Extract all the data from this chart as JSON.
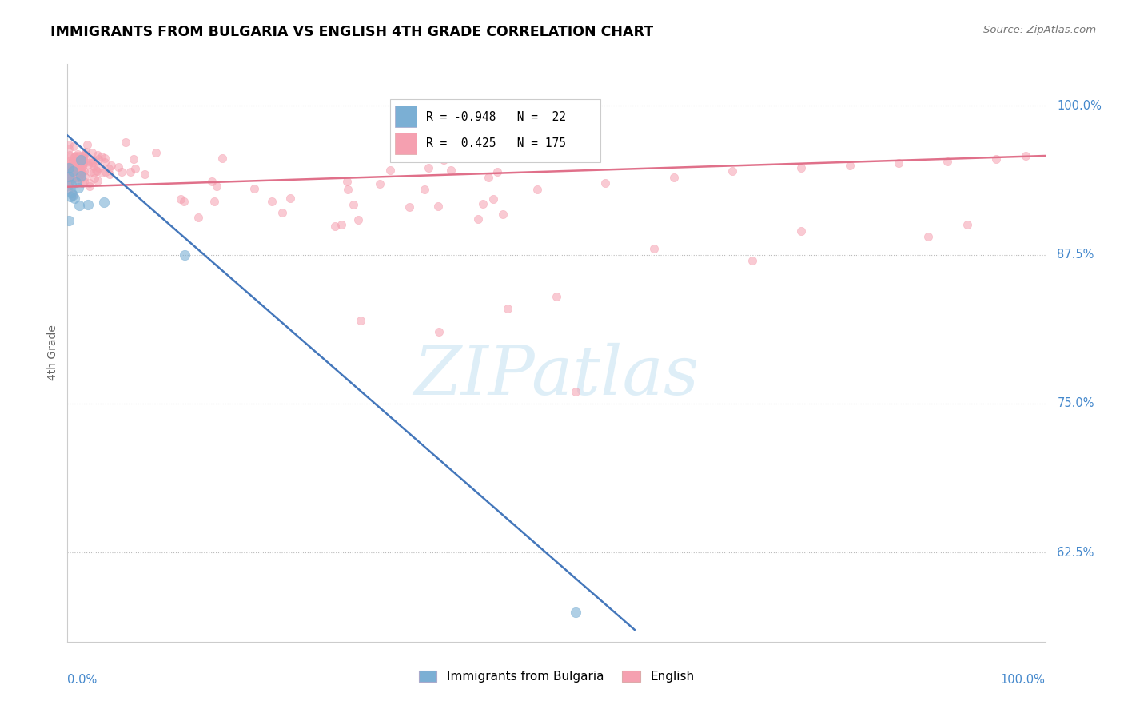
{
  "title": "IMMIGRANTS FROM BULGARIA VS ENGLISH 4TH GRADE CORRELATION CHART",
  "source": "Source: ZipAtlas.com",
  "ylabel": "4th Grade",
  "ytick_labels": [
    "62.5%",
    "75.0%",
    "87.5%",
    "100.0%"
  ],
  "ytick_values": [
    0.625,
    0.75,
    0.875,
    1.0
  ],
  "legend_label1": "Immigrants from Bulgaria",
  "legend_label2": "English",
  "r1": -0.948,
  "n1": 22,
  "r2": 0.425,
  "n2": 175,
  "color_blue": "#7BAFD4",
  "color_pink": "#F5A0B0",
  "color_blue_line": "#4477BB",
  "color_pink_line": "#E0708A",
  "xlim": [
    0.0,
    1.0
  ],
  "ylim": [
    0.55,
    1.035
  ],
  "blue_line_x": [
    0.0,
    0.58
  ],
  "blue_line_y": [
    0.975,
    0.56
  ],
  "pink_line_x": [
    0.0,
    1.0
  ],
  "pink_line_y": [
    0.932,
    0.958
  ]
}
